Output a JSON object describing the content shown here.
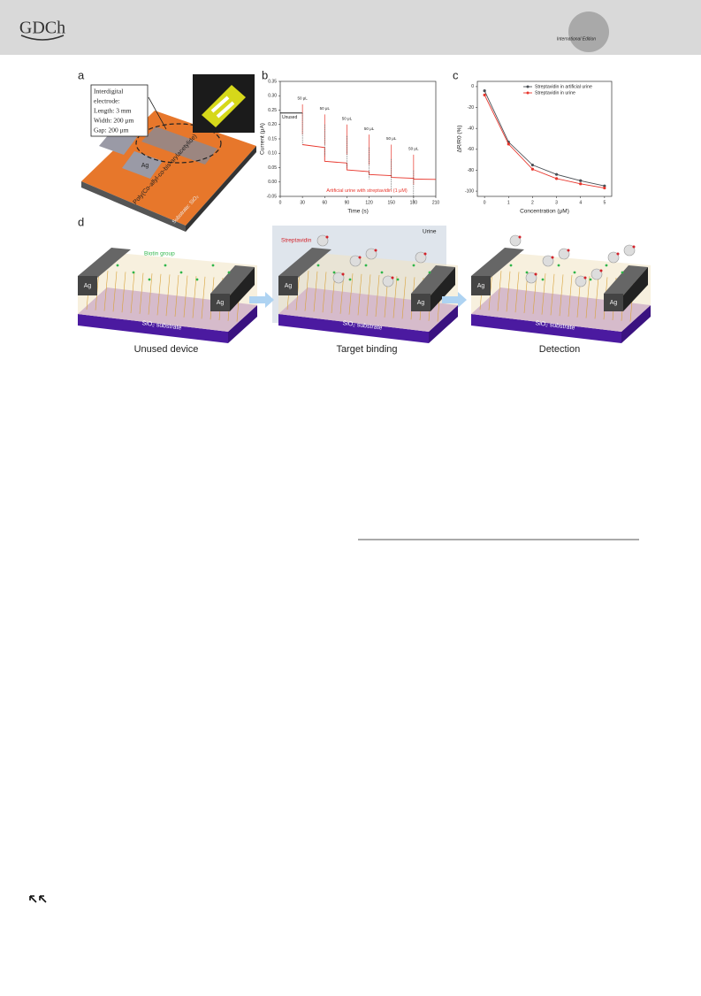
{
  "header": {
    "logo": "GDCh",
    "badge": "International Edition"
  },
  "figure": {
    "panel_labels": [
      "a",
      "b",
      "c",
      "d"
    ],
    "panel_a": {
      "box": [
        "Interdigital",
        "electrode:",
        "Length: 3 mm",
        "Width: 200 μm",
        "Gap: 200 μm"
      ],
      "polymer": "Poly(Co-allyl-co-bis-arylacetylide)",
      "substrate": "Substrate: SiO₂",
      "electrode": "Ag"
    },
    "panel_d": {
      "biotin": "Biotin group",
      "streptavidin": "Streptavidin",
      "urine": "Urine",
      "electrodes": [
        "Ag",
        "Ag",
        "Ag",
        "Ag",
        "Ag",
        "Ag"
      ],
      "substrates": [
        "SiO₂ substrate",
        "SiO₂ substrate",
        "SiO₂ substrate"
      ],
      "captions": [
        "Unused device",
        "Target binding",
        "Detection"
      ]
    }
  },
  "chart_data": [
    {
      "type": "line",
      "xlabel": "Time (s)",
      "ylabel": "Current (μA)",
      "xlim": [
        0,
        210
      ],
      "ylim": [
        -0.05,
        0.35
      ],
      "xticks": [
        0,
        30,
        60,
        90,
        120,
        150,
        180,
        210
      ],
      "yticks": [
        -0.05,
        {
          "value": 0,
          "label": "0.00"
        },
        0.05,
        {
          "value": 0.1,
          "label": "0.10"
        },
        0.15,
        {
          "value": 0.2,
          "label": "0.20"
        },
        0.25,
        {
          "value": 0.3,
          "label": "0.30"
        },
        0.35
      ],
      "series": [
        {
          "color": "#222222",
          "x": [
            0,
            30
          ],
          "values": [
            0.24,
            0.24
          ]
        },
        {
          "color": "#e8352b",
          "x": [
            30,
            60,
            60,
            90,
            90,
            120,
            120,
            150,
            150,
            180,
            180,
            210
          ],
          "values": [
            0.13,
            0.12,
            0.072,
            0.066,
            0.042,
            0.036,
            0.026,
            0.022,
            0.016,
            0.013,
            0.01,
            0.009
          ]
        }
      ],
      "annotations": [
        "Unused",
        "50 μL",
        "50 μL",
        "50 μL",
        "50 μL",
        "50 μL",
        "50 μL",
        "Artificial urine with streptavidin (1 μM)"
      ]
    },
    {
      "type": "line",
      "xlabel": "Concentration (μM)",
      "ylabel": "ΔR/R0 (%)",
      "xlim": [
        -0.3,
        5.3
      ],
      "ylim": [
        -105,
        5
      ],
      "xticks": [
        0,
        1,
        2,
        3,
        4,
        5
      ],
      "yticks": [
        -100,
        -80,
        -60,
        -40,
        -20,
        0
      ],
      "series": [
        {
          "name": "Streptavidin in artificial urine",
          "color": "#4a4f55",
          "x": [
            0,
            1,
            2,
            3,
            4,
            5
          ],
          "values": [
            -4,
            -53,
            -75,
            -84,
            -90,
            -95
          ]
        },
        {
          "name": "Streptavidin in urine",
          "color": "#e8352b",
          "x": [
            0,
            1,
            2,
            3,
            4,
            5
          ],
          "values": [
            -8,
            -55,
            -79,
            -88,
            -93,
            -97
          ]
        }
      ]
    }
  ]
}
